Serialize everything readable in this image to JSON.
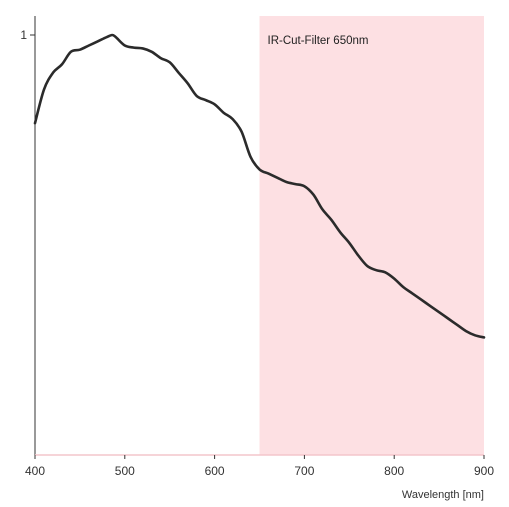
{
  "chart_data": {
    "type": "line",
    "title": "",
    "xlabel": "Wavelength [nm]",
    "ylabel": "",
    "xlim": [
      400,
      900
    ],
    "ylim": [
      0,
      1
    ],
    "x_ticks": [
      400,
      500,
      600,
      700,
      800,
      900
    ],
    "y_ticks": [
      1
    ],
    "grid": false,
    "shaded_region": {
      "label": "IR-Cut-Filter 650nm",
      "x_start": 650,
      "x_end": 900,
      "color": "#fde0e3"
    },
    "series": [
      {
        "color": "#2b2b2b",
        "x": [
          400,
          410,
          420,
          430,
          440,
          450,
          460,
          470,
          480,
          486,
          490,
          500,
          510,
          520,
          530,
          540,
          550,
          560,
          570,
          580,
          590,
          600,
          610,
          620,
          630,
          640,
          650,
          660,
          670,
          680,
          690,
          700,
          710,
          720,
          730,
          740,
          750,
          760,
          770,
          780,
          790,
          800,
          810,
          820,
          830,
          840,
          850,
          860,
          870,
          880,
          890,
          900
        ],
        "y": [
          0.79,
          0.87,
          0.91,
          0.93,
          0.96,
          0.965,
          0.975,
          0.985,
          0.995,
          1.0,
          0.995,
          0.975,
          0.97,
          0.968,
          0.96,
          0.945,
          0.935,
          0.91,
          0.885,
          0.855,
          0.845,
          0.835,
          0.815,
          0.8,
          0.77,
          0.71,
          0.68,
          0.67,
          0.66,
          0.65,
          0.645,
          0.64,
          0.62,
          0.585,
          0.56,
          0.53,
          0.505,
          0.475,
          0.45,
          0.44,
          0.435,
          0.42,
          0.4,
          0.385,
          0.37,
          0.355,
          0.34,
          0.325,
          0.31,
          0.295,
          0.285,
          0.28
        ]
      }
    ]
  }
}
